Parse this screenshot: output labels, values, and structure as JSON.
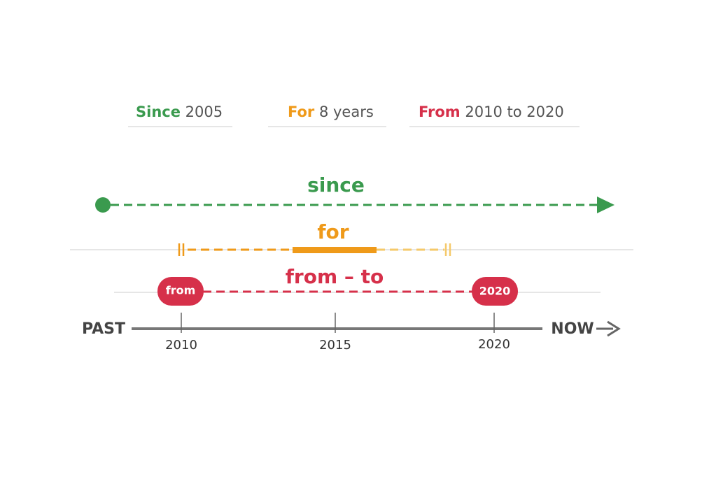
{
  "headers": [
    {
      "keyword": "Since",
      "rest": "2005"
    },
    {
      "keyword": "For",
      "rest": "8 years"
    },
    {
      "keyword": "From",
      "rest": "2010 to 2020"
    }
  ],
  "lines": {
    "since": "since",
    "for": "for",
    "from_to": "from – to",
    "from_badge": "from",
    "to_badge": "2020"
  },
  "timeline": {
    "start": "PAST",
    "end": "NOW",
    "ticks": [
      "2010",
      "2015",
      "2020"
    ]
  }
}
